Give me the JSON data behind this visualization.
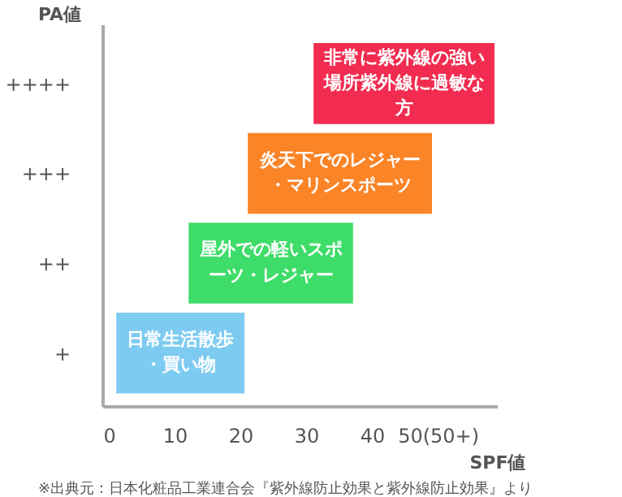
{
  "chart_data": {
    "type": "bar",
    "orientation": "horizontal",
    "xlabel": "SPF値",
    "ylabel": "PA値",
    "categories": [
      "++++",
      "+++",
      "++",
      "+"
    ],
    "values": [
      27.5,
      28,
      25,
      19.5
    ],
    "base": [
      31,
      21,
      12,
      1
    ],
    "colors": [
      "#f22c50",
      "#fb8427",
      "#3edc68",
      "#7ecbf2"
    ],
    "xlim": [
      -1,
      59
    ],
    "xticks": [
      0,
      10,
      20,
      30,
      40,
      {
        "value": 50,
        "label": "50(50+)"
      }
    ],
    "annotations": [
      {
        "text": "非常に紫外線の強い場所紫外線に過敏な方",
        "x": 44.75,
        "y": "++++"
      },
      {
        "text": "炎天下でのレジャー・マリンスポーツ",
        "x": 35,
        "y": "+++"
      },
      {
        "text": "屋外での軽いスポーツ・レジャー",
        "x": 24.5,
        "y": "++"
      },
      {
        "text": "日常生活散歩・買い物",
        "x": 10.75,
        "y": "+"
      },
      "※出典元：日本化粧品工業連合会『紫外線防止効果と紫外線防止効果』より"
    ]
  }
}
